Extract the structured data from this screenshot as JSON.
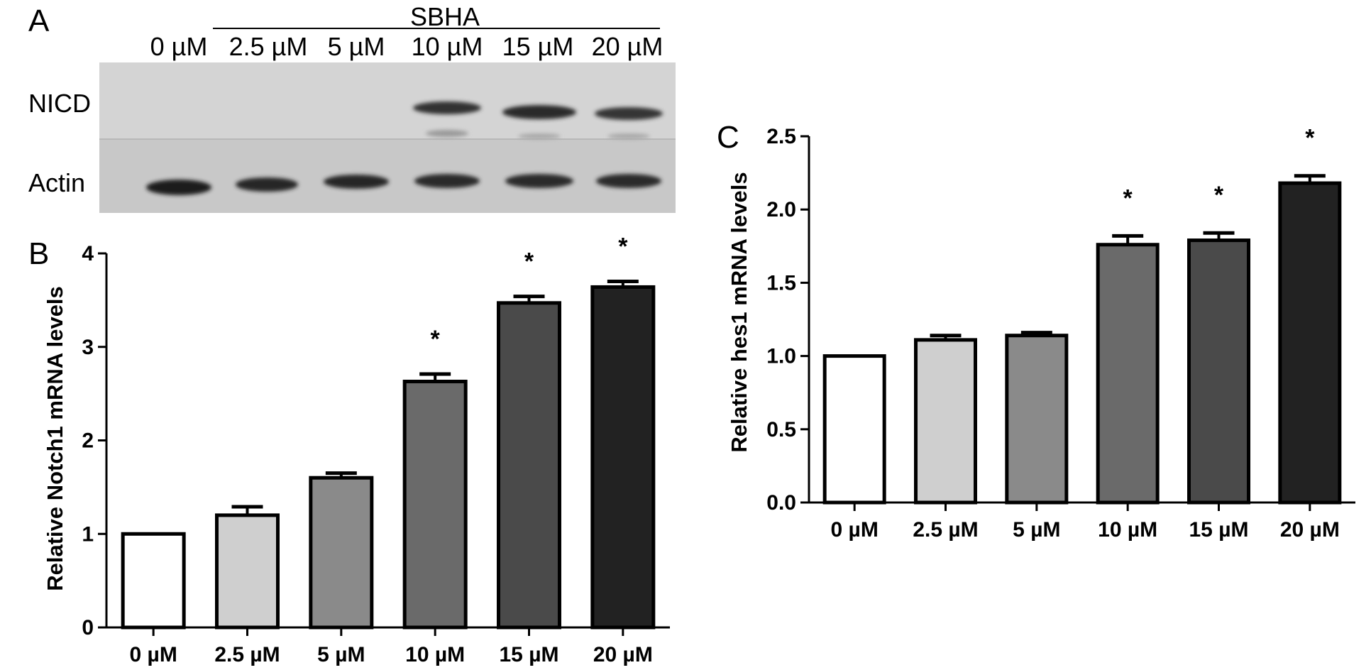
{
  "panel_labels": {
    "a": "A",
    "b": "B",
    "c": "C"
  },
  "blot": {
    "treatment": "SBHA",
    "lanes": [
      "0 µM",
      "2.5 µM",
      "5 µM",
      "10 µM",
      "15 µM",
      "20 µM"
    ],
    "rows": [
      "NICD",
      "Actin"
    ]
  },
  "chart_data": [
    {
      "type": "bar",
      "panel": "B",
      "categories": [
        "0 µM",
        "2.5 µM",
        "5 µM",
        "10 µM",
        "15 µM",
        "20 µM"
      ],
      "values": [
        1.0,
        1.2,
        1.6,
        2.63,
        3.47,
        3.64
      ],
      "errors": [
        0.0,
        0.09,
        0.05,
        0.08,
        0.07,
        0.06
      ],
      "significance": [
        "",
        "",
        "",
        "*",
        "*",
        "*"
      ],
      "bar_colors": [
        "#ffffff",
        "#cfcfcf",
        "#8a8a8a",
        "#6a6a6a",
        "#4a4a4a",
        "#222222"
      ],
      "title": "",
      "xlabel": "",
      "ylabel": "Relative Notch1 mRNA levels",
      "ylim": [
        0,
        4
      ],
      "yticks": [
        0,
        1,
        2,
        3,
        4
      ],
      "ytick_labels": [
        "0",
        "1",
        "2",
        "3",
        "4"
      ]
    },
    {
      "type": "bar",
      "panel": "C",
      "categories": [
        "0 µM",
        "2.5 µM",
        "5 µM",
        "10 µM",
        "15 µM",
        "20 µM"
      ],
      "values": [
        1.0,
        1.11,
        1.14,
        1.76,
        1.79,
        2.18
      ],
      "errors": [
        0.0,
        0.03,
        0.02,
        0.06,
        0.05,
        0.05
      ],
      "significance": [
        "",
        "",
        "",
        "*",
        "*",
        "*"
      ],
      "bar_colors": [
        "#ffffff",
        "#cfcfcf",
        "#8a8a8a",
        "#6a6a6a",
        "#4a4a4a",
        "#222222"
      ],
      "title": "",
      "xlabel": "",
      "ylabel": "Relative hes1 mRNA levels",
      "ylim": [
        0,
        2.5
      ],
      "yticks": [
        0,
        0.5,
        1.0,
        1.5,
        2.0,
        2.5
      ],
      "ytick_labels": [
        "0.0",
        "0.5",
        "1.0",
        "1.5",
        "2.0",
        "2.5"
      ]
    }
  ]
}
